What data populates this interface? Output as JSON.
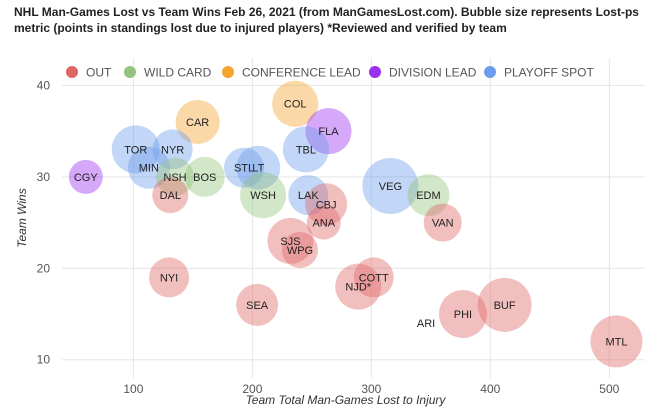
{
  "chart_data": {
    "type": "scatter",
    "title": "NHL Man-Games Lost vs Team Wins Feb 26, 2021 (from ManGamesLost.com). Bubble size represents Lost-ps metric (points in standings lost due to injured players) *Reviewed and verified by team",
    "xlabel": "Team Total Man-Games Lost to Injury",
    "ylabel": "Team Wins",
    "xlim": [
      40,
      530
    ],
    "ylim": [
      8,
      43
    ],
    "xticks": [
      100,
      200,
      300,
      400,
      500
    ],
    "yticks": [
      10,
      20,
      30,
      40
    ],
    "grid": true,
    "legend_position": "top",
    "legend": [
      {
        "label": "OUT",
        "color": "#e06666"
      },
      {
        "label": "WILD CARD",
        "color": "#93c47d"
      },
      {
        "label": "CONFERENCE LEAD",
        "color": "#f6a330"
      },
      {
        "label": "DIVISION LEAD",
        "color": "#9b2ff0"
      },
      {
        "label": "PLAYOFF SPOT",
        "color": "#6d9eeb"
      }
    ],
    "points": [
      {
        "team": "COL",
        "x": 236,
        "y": 38,
        "size": 23,
        "group": "CONFERENCE LEAD"
      },
      {
        "team": "FLA",
        "x": 264,
        "y": 35,
        "size": 23,
        "group": "DIVISION LEAD"
      },
      {
        "team": "CAR",
        "x": 154,
        "y": 36,
        "size": 22,
        "group": "CONFERENCE LEAD"
      },
      {
        "team": "TOR",
        "x": 102,
        "y": 33,
        "size": 24,
        "group": "PLAYOFF SPOT"
      },
      {
        "team": "NYR",
        "x": 133,
        "y": 33,
        "size": 20,
        "group": "PLAYOFF SPOT"
      },
      {
        "team": "TBL",
        "x": 245,
        "y": 33,
        "size": 23,
        "group": "PLAYOFF SPOT"
      },
      {
        "team": "CGY",
        "x": 60,
        "y": 30,
        "size": 17,
        "group": "DIVISION LEAD"
      },
      {
        "team": "MIN",
        "x": 113,
        "y": 31,
        "size": 21,
        "group": "PLAYOFF SPOT"
      },
      {
        "team": "NSH",
        "x": 135,
        "y": 30,
        "size": 19,
        "group": "WILD CARD"
      },
      {
        "team": "BOS",
        "x": 160,
        "y": 30,
        "size": 20,
        "group": "WILD CARD"
      },
      {
        "team": "STL",
        "x": 193,
        "y": 31,
        "size": 20,
        "group": "PLAYOFF SPOT"
      },
      {
        "team": "LT",
        "x": 205,
        "y": 31,
        "size": 22,
        "group": "PLAYOFF SPOT"
      },
      {
        "team": "VEG",
        "x": 316,
        "y": 29,
        "size": 28,
        "group": "PLAYOFF SPOT"
      },
      {
        "team": "EDM",
        "x": 348,
        "y": 28,
        "size": 21,
        "group": "WILD CARD"
      },
      {
        "team": "DAL",
        "x": 131,
        "y": 28,
        "size": 18,
        "group": "OUT"
      },
      {
        "team": "WSH",
        "x": 209,
        "y": 28,
        "size": 23,
        "group": "WILD CARD"
      },
      {
        "team": "LAK",
        "x": 247,
        "y": 28,
        "size": 20,
        "group": "PLAYOFF SPOT"
      },
      {
        "team": "CBJ",
        "x": 262,
        "y": 27,
        "size": 21,
        "group": "OUT"
      },
      {
        "team": "VAN",
        "x": 360,
        "y": 25,
        "size": 19,
        "group": "OUT"
      },
      {
        "team": "ANA",
        "x": 260,
        "y": 25,
        "size": 17,
        "group": "OUT"
      },
      {
        "team": "SJS",
        "x": 232,
        "y": 23,
        "size": 23,
        "group": "OUT"
      },
      {
        "team": "WPG",
        "x": 240,
        "y": 22,
        "size": 18,
        "group": "OUT"
      },
      {
        "team": "NYI",
        "x": 130,
        "y": 19,
        "size": 20,
        "group": "OUT"
      },
      {
        "team": "COTT",
        "x": 302,
        "y": 19,
        "size": 20,
        "group": "OUT"
      },
      {
        "team": "NJD*",
        "x": 289,
        "y": 18,
        "size": 23,
        "group": "OUT"
      },
      {
        "team": "SEA",
        "x": 204,
        "y": 16,
        "size": 21,
        "group": "OUT"
      },
      {
        "team": "BUF",
        "x": 412,
        "y": 16,
        "size": 27,
        "group": "OUT"
      },
      {
        "team": "ARI",
        "x": 346,
        "y": 14,
        "size": 0,
        "group": "OUT"
      },
      {
        "team": "PHI",
        "x": 377,
        "y": 15,
        "size": 24,
        "group": "OUT"
      },
      {
        "team": "MTL",
        "x": 506,
        "y": 12,
        "size": 26,
        "group": "OUT"
      }
    ]
  }
}
